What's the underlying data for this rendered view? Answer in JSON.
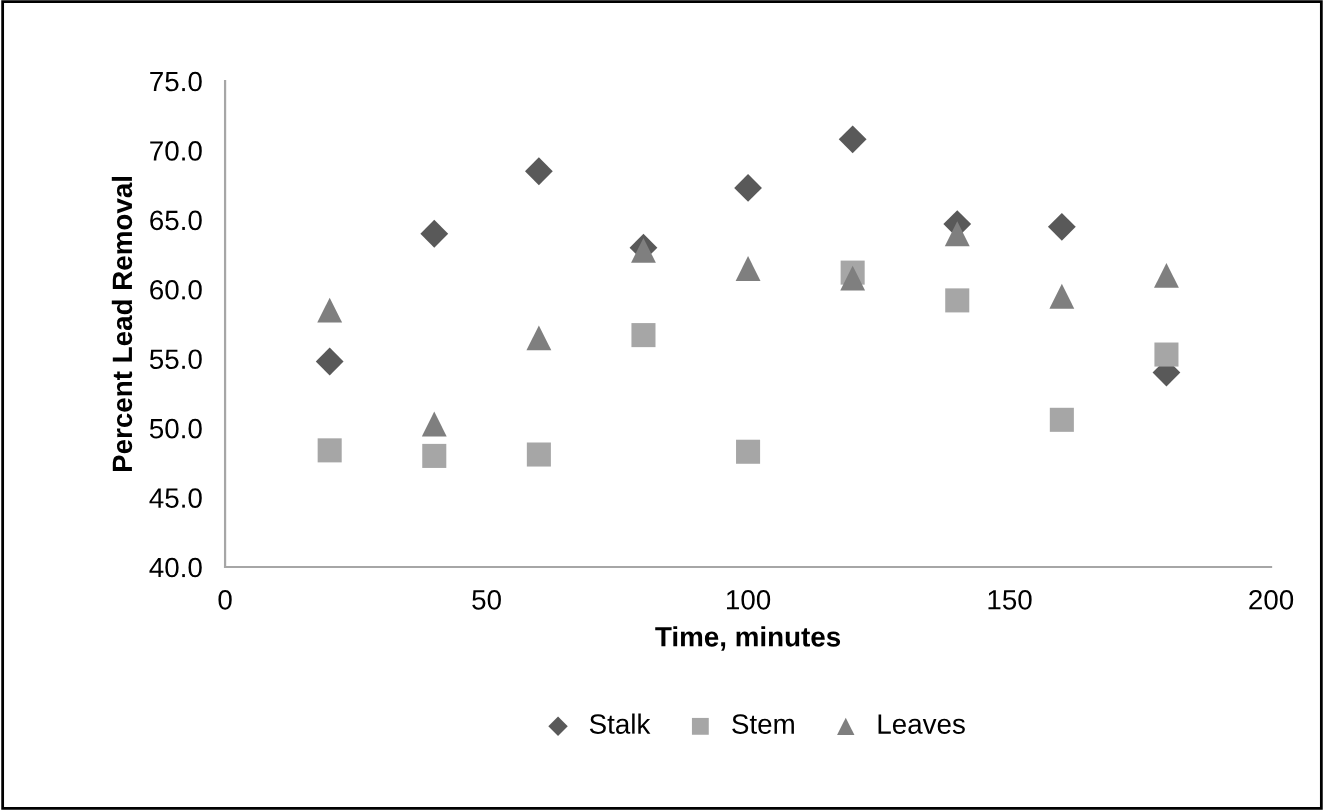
{
  "chart_data": {
    "type": "scatter",
    "xlabel": "Time, minutes",
    "ylabel": "Percent Lead Removal",
    "x": [
      20,
      40,
      60,
      80,
      100,
      120,
      140,
      160,
      180
    ],
    "series": [
      {
        "name": "Stalk",
        "color": "#595959",
        "marker": "diamond",
        "values": [
          54.8,
          64.0,
          68.5,
          63.0,
          67.3,
          70.8,
          64.7,
          64.5,
          54.0
        ]
      },
      {
        "name": "Stem",
        "color": "#a6a6a6",
        "marker": "square",
        "values": [
          48.4,
          48.0,
          48.1,
          56.7,
          48.3,
          61.2,
          59.2,
          50.6,
          55.3
        ]
      },
      {
        "name": "Leaves",
        "color": "#7f7f7f",
        "marker": "triangle",
        "values": [
          58.5,
          50.3,
          56.5,
          62.8,
          61.5,
          60.8,
          64.0,
          59.5,
          61.0
        ]
      }
    ],
    "xlim": [
      0,
      200
    ],
    "xticks": [
      0,
      50,
      100,
      150,
      200
    ],
    "ylim": [
      40,
      75
    ],
    "yticks": [
      {
        "value": 40,
        "label": "40.0"
      },
      {
        "value": 45,
        "label": "45.0"
      },
      {
        "value": 50,
        "label": "50.0"
      },
      {
        "value": 55,
        "label": "55.0"
      },
      {
        "value": 60,
        "label": "60.0"
      },
      {
        "value": 65,
        "label": "65.0"
      },
      {
        "value": 70,
        "label": "70.0"
      },
      {
        "value": 75,
        "label": "75.0"
      }
    ],
    "grid": false,
    "legend": "bottom"
  }
}
